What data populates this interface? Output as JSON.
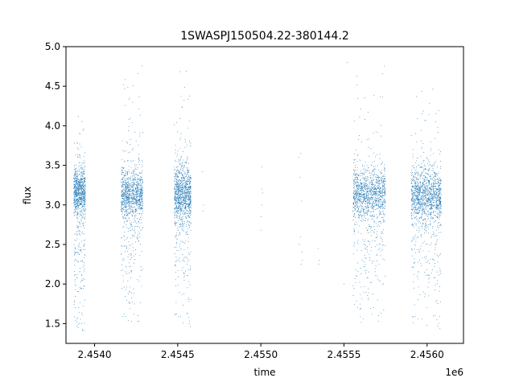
{
  "chart_data": {
    "type": "scatter",
    "title": "1SWASPJ150504.22-380144.2",
    "xlabel": "time",
    "ylabel": "flux",
    "x_offset_label": "1e6",
    "xlim": [
      2453828,
      2456219
    ],
    "ylim": [
      1.25,
      5.0
    ],
    "x_ticks": [
      2454000,
      2454500,
      2455000,
      2455500,
      2456000
    ],
    "x_tick_labels": [
      "2.4540",
      "2.4545",
      "2.4550",
      "2.4555",
      "2.4560"
    ],
    "y_ticks": [
      1.5,
      2.0,
      2.5,
      3.0,
      3.5,
      4.0,
      4.5,
      5.0
    ],
    "y_tick_labels": [
      "1.5",
      "2.0",
      "2.5",
      "3.0",
      "3.5",
      "4.0",
      "4.5",
      "5.0"
    ],
    "grid": false,
    "point_color": "#1f77b4",
    "clusters": [
      {
        "x_range": [
          2453875,
          2453945
        ],
        "y_center": 3.18,
        "y_spread": 0.14,
        "tail_low": 1.4,
        "tail_high": 4.2,
        "n": 900
      },
      {
        "x_range": [
          2454160,
          2454290
        ],
        "y_center": 3.15,
        "y_spread": 0.15,
        "tail_low": 1.5,
        "tail_high": 4.85,
        "n": 1100
      },
      {
        "x_range": [
          2454480,
          2454580
        ],
        "y_center": 3.15,
        "y_spread": 0.17,
        "tail_low": 1.45,
        "tail_high": 4.85,
        "n": 1100
      },
      {
        "x_range": [
          2455555,
          2455750
        ],
        "y_center": 3.15,
        "y_spread": 0.15,
        "tail_low": 1.5,
        "tail_high": 4.85,
        "n": 1300
      },
      {
        "x_range": [
          2455905,
          2456085
        ],
        "y_center": 3.13,
        "y_spread": 0.16,
        "tail_low": 1.42,
        "tail_high": 4.6,
        "n": 1400
      }
    ],
    "sparse_points": [
      {
        "x": 2454650,
        "y": 3.42
      },
      {
        "x": 2454655,
        "y": 3.0
      },
      {
        "x": 2454652,
        "y": 2.92
      },
      {
        "x": 2455000,
        "y": 2.68
      },
      {
        "x": 2455008,
        "y": 3.2
      },
      {
        "x": 2455010,
        "y": 3.15
      },
      {
        "x": 2455005,
        "y": 3.48
      },
      {
        "x": 2455002,
        "y": 2.85
      },
      {
        "x": 2455006,
        "y": 3.0
      },
      {
        "x": 2455230,
        "y": 3.6
      },
      {
        "x": 2455240,
        "y": 3.65
      },
      {
        "x": 2455235,
        "y": 3.35
      },
      {
        "x": 2455245,
        "y": 3.05
      },
      {
        "x": 2455232,
        "y": 2.5
      },
      {
        "x": 2455248,
        "y": 2.4
      },
      {
        "x": 2455250,
        "y": 2.3
      },
      {
        "x": 2455242,
        "y": 2.25
      },
      {
        "x": 2455238,
        "y": 2.6
      },
      {
        "x": 2455345,
        "y": 2.45
      },
      {
        "x": 2455350,
        "y": 2.3
      },
      {
        "x": 2455348,
        "y": 2.25
      },
      {
        "x": 2454210,
        "y": 4.35
      },
      {
        "x": 2455500,
        "y": 2.0
      },
      {
        "x": 2455520,
        "y": 4.8
      }
    ]
  }
}
